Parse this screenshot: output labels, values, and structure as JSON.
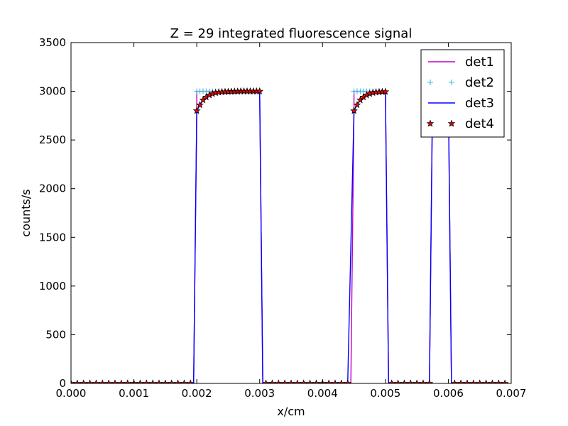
{
  "chart_data": {
    "type": "line",
    "title": "Z = 29 integrated fluorescence signal",
    "xlabel": "x/cm",
    "ylabel": "counts/s",
    "xlim": [
      0.0,
      0.007
    ],
    "ylim": [
      0,
      3500
    ],
    "xticks": [
      "0.000",
      "0.001",
      "0.002",
      "0.003",
      "0.004",
      "0.005",
      "0.006",
      "0.007"
    ],
    "yticks": [
      "0",
      "500",
      "1000",
      "1500",
      "2000",
      "2500",
      "3000",
      "3500"
    ],
    "grid": false,
    "legend_position": "top-right",
    "series": [
      {
        "name": "det1",
        "style": "line",
        "color": "#c000c0",
        "x": [
          0.0,
          0.00195,
          0.002,
          0.002,
          0.003,
          0.00305,
          0.00445,
          0.0045,
          0.0045,
          0.005,
          0.00505,
          0.0057,
          0.00575,
          0.006,
          0.00605,
          0.0069
        ],
        "y": [
          0,
          0,
          2800,
          3000,
          3000,
          0,
          0,
          2800,
          3000,
          3000,
          0,
          0,
          3000,
          3000,
          0,
          0
        ]
      },
      {
        "name": "det2",
        "style": "marker",
        "marker": "+",
        "color": "#40b8e0",
        "x": [
          0.002,
          0.00205,
          0.0021,
          0.00215,
          0.0022,
          0.00225,
          0.0023,
          0.00235,
          0.0024,
          0.00245,
          0.0025,
          0.00255,
          0.0026,
          0.00265,
          0.0027,
          0.00275,
          0.0028,
          0.00285,
          0.0029,
          0.00295,
          0.003,
          0.0045,
          0.00455,
          0.0046,
          0.00465,
          0.0047,
          0.00475,
          0.0048,
          0.00485,
          0.0049,
          0.00495,
          0.005
        ],
        "y": [
          3000,
          3000,
          3000,
          3000,
          3000,
          3000,
          3000,
          3000,
          3000,
          3000,
          3000,
          3000,
          3000,
          3000,
          3000,
          3000,
          3000,
          3000,
          3000,
          3000,
          3000,
          3000,
          3000,
          3000,
          3000,
          3000,
          3000,
          3000,
          3000,
          3000,
          3000,
          3000
        ]
      },
      {
        "name": "det3",
        "style": "line",
        "color": "#0000ff",
        "x": [
          0.0,
          0.00195,
          0.002,
          0.00205,
          0.0021,
          0.00215,
          0.0022,
          0.00225,
          0.0023,
          0.0024,
          0.0025,
          0.0026,
          0.0027,
          0.0028,
          0.0029,
          0.003,
          0.00305,
          0.0044,
          0.0045,
          0.00455,
          0.0046,
          0.00465,
          0.0047,
          0.00475,
          0.0048,
          0.0049,
          0.005,
          0.00505,
          0.0057,
          0.00575,
          0.0058,
          0.0059,
          0.006,
          0.00605,
          0.0069
        ],
        "y": [
          0,
          0,
          2800,
          2860,
          2910,
          2940,
          2960,
          2975,
          2985,
          2992,
          2996,
          2998,
          2999,
          3000,
          3000,
          3000,
          0,
          0,
          2800,
          2860,
          2910,
          2940,
          2960,
          2975,
          2985,
          2992,
          2996,
          0,
          0,
          3000,
          3000,
          3000,
          3000,
          0,
          0
        ]
      },
      {
        "name": "det4",
        "style": "marker",
        "marker": "star",
        "color": "#ff0000",
        "x": [
          0.0,
          0.0001,
          0.0002,
          0.0003,
          0.0004,
          0.0005,
          0.0006,
          0.0007,
          0.0008,
          0.0009,
          0.001,
          0.0011,
          0.0012,
          0.0013,
          0.0014,
          0.0015,
          0.0016,
          0.0017,
          0.0018,
          0.0019,
          0.002,
          0.00205,
          0.0021,
          0.00215,
          0.0022,
          0.00225,
          0.0023,
          0.00235,
          0.0024,
          0.00245,
          0.0025,
          0.00255,
          0.0026,
          0.00265,
          0.0027,
          0.00275,
          0.0028,
          0.00285,
          0.0029,
          0.00295,
          0.003,
          0.0031,
          0.0032,
          0.0033,
          0.0034,
          0.0035,
          0.0036,
          0.0037,
          0.0038,
          0.0039,
          0.004,
          0.0041,
          0.0042,
          0.0043,
          0.0044,
          0.0045,
          0.00455,
          0.0046,
          0.00465,
          0.0047,
          0.00475,
          0.0048,
          0.00485,
          0.0049,
          0.00495,
          0.005,
          0.0051,
          0.0052,
          0.0053,
          0.0054,
          0.0055,
          0.0056,
          0.0057,
          0.0061,
          0.0062,
          0.0063,
          0.0064,
          0.0065,
          0.0066,
          0.0067,
          0.0068,
          0.0069
        ],
        "y": [
          0,
          0,
          0,
          0,
          0,
          0,
          0,
          0,
          0,
          0,
          0,
          0,
          0,
          0,
          0,
          0,
          0,
          0,
          0,
          0,
          2800,
          2860,
          2910,
          2940,
          2960,
          2975,
          2985,
          2990,
          2993,
          2995,
          2996,
          2997,
          2998,
          2999,
          3000,
          3000,
          3000,
          3000,
          3000,
          3000,
          3000,
          0,
          0,
          0,
          0,
          0,
          0,
          0,
          0,
          0,
          0,
          0,
          0,
          0,
          0,
          2800,
          2860,
          2910,
          2940,
          2960,
          2975,
          2985,
          2990,
          2993,
          2995,
          2996,
          0,
          0,
          0,
          0,
          0,
          0,
          0,
          0,
          0,
          0,
          0,
          0,
          0,
          0,
          0,
          0
        ]
      }
    ]
  }
}
